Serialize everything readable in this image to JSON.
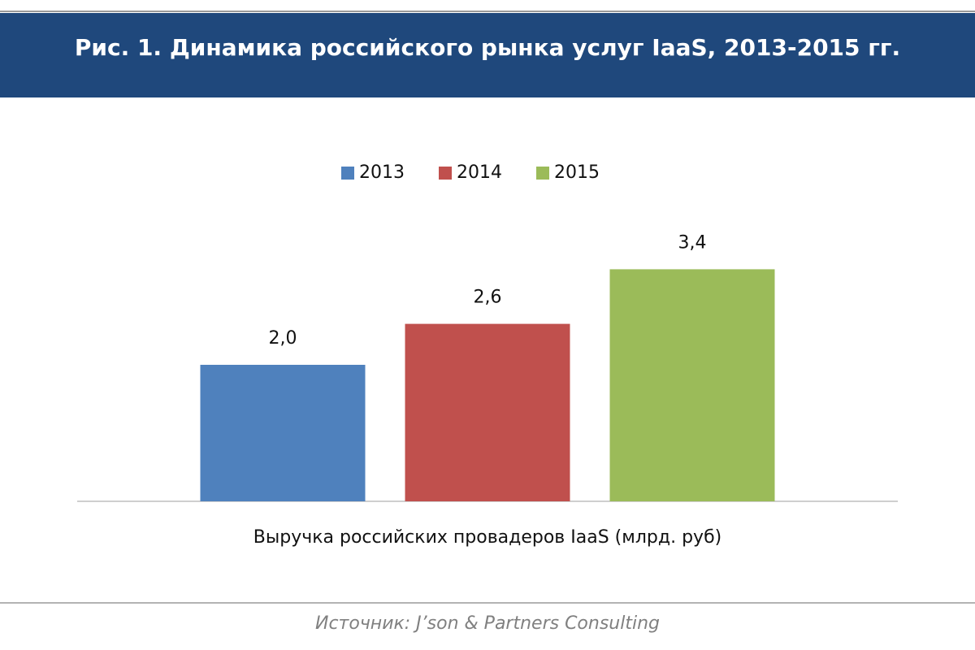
{
  "chart_data": {
    "type": "bar",
    "title": "Рис. 1. Динамика российского рынка услуг IaaS, 2013-2015 гг.",
    "categories": [
      "Выручка российских провадеров IaaS (млрд. руб)"
    ],
    "series": [
      {
        "name": "2013",
        "color": "#4f81bd",
        "values": [
          2.0
        ],
        "value_labels": [
          "2,0"
        ]
      },
      {
        "name": "2014",
        "color": "#c0504d",
        "values": [
          2.6
        ],
        "value_labels": [
          "2,6"
        ]
      },
      {
        "name": "2015",
        "color": "#9bbb59",
        "values": [
          3.4
        ],
        "value_labels": [
          "3,4"
        ]
      }
    ],
    "legend": "top",
    "source": "Источник: J’son & Partners Consulting"
  }
}
